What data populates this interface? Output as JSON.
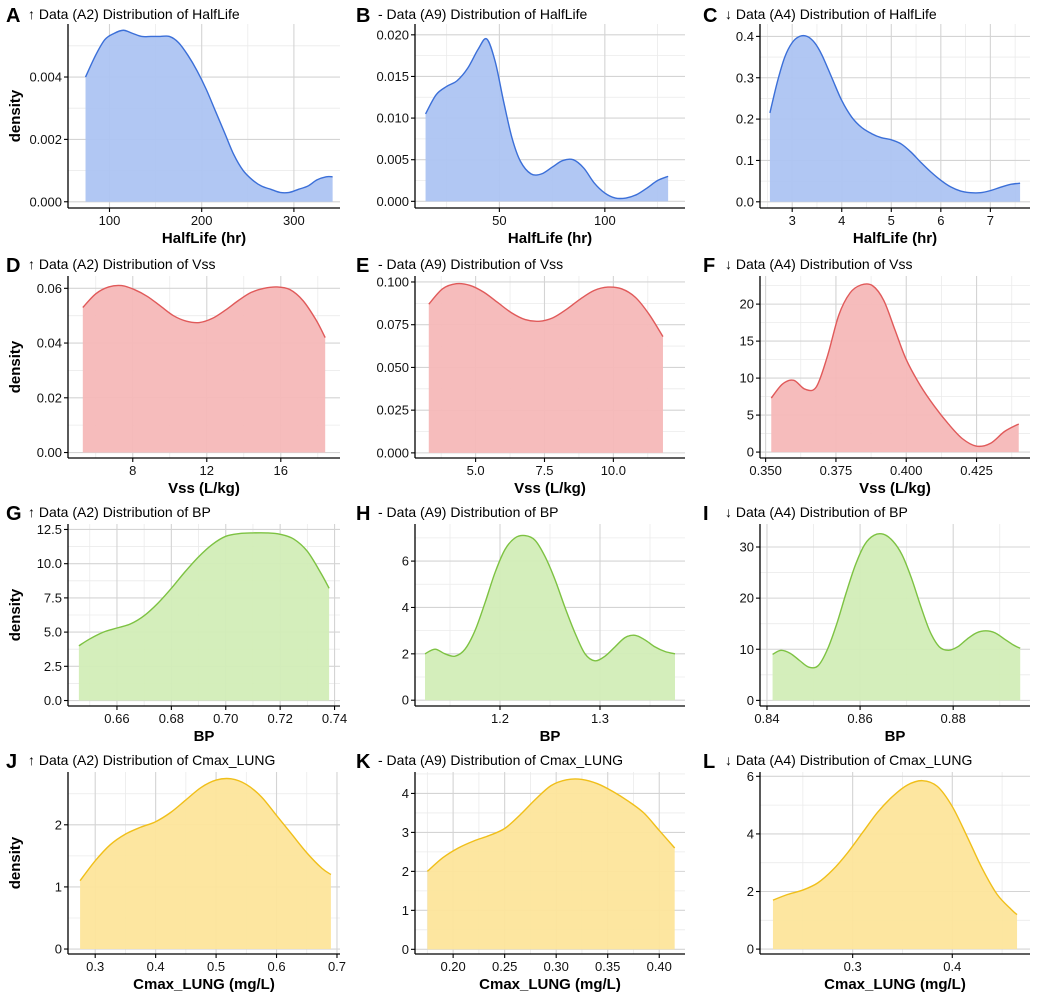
{
  "ylabel": "density",
  "chart_data": [
    {
      "panel": "A",
      "type": "area",
      "title": "↑ Data (A2) Distribution of HalfLife",
      "xlabel": "HalfLife (hr)",
      "ylabel": "density",
      "color": "#3b6fd8",
      "fill": "#adc4f2",
      "xlim": [
        55,
        350
      ],
      "ylim": [
        -0.0002,
        0.0057
      ],
      "xticks": [
        100,
        200,
        300
      ],
      "xtick_labels": [
        "100",
        "200",
        "300"
      ],
      "yticks": [
        0.0,
        0.002,
        0.004
      ],
      "ytick_labels": [
        "0.000",
        "0.002",
        "0.004"
      ],
      "x": [
        74,
        85,
        95,
        105,
        115,
        125,
        135,
        145,
        155,
        165,
        175,
        185,
        195,
        205,
        215,
        225,
        235,
        245,
        255,
        265,
        275,
        285,
        295,
        305,
        315,
        325,
        335,
        342
      ],
      "y": [
        0.004,
        0.0047,
        0.0052,
        0.0054,
        0.0055,
        0.0054,
        0.0053,
        0.0053,
        0.0053,
        0.0053,
        0.0051,
        0.0047,
        0.0042,
        0.0036,
        0.0029,
        0.0022,
        0.0015,
        0.001,
        0.0007,
        0.0005,
        0.0004,
        0.0003,
        0.0003,
        0.0004,
        0.0005,
        0.0007,
        0.0008,
        0.0008
      ]
    },
    {
      "panel": "B",
      "type": "area",
      "title": "- Data (A9) Distribution of HalfLife",
      "xlabel": "HalfLife (hr)",
      "ylabel": "",
      "color": "#3b6fd8",
      "fill": "#adc4f2",
      "xlim": [
        10,
        138
      ],
      "ylim": [
        -0.0008,
        0.0213
      ],
      "xticks": [
        50,
        100
      ],
      "xtick_labels": [
        "50",
        "100"
      ],
      "yticks": [
        0.0,
        0.005,
        0.01,
        0.015,
        0.02
      ],
      "ytick_labels": [
        "0.000",
        "0.005",
        "0.010",
        "0.015",
        "0.020"
      ],
      "x": [
        15,
        20,
        25,
        30,
        35,
        40,
        44,
        48,
        52,
        56,
        60,
        65,
        70,
        75,
        80,
        85,
        90,
        95,
        100,
        105,
        110,
        115,
        120,
        125,
        130
      ],
      "y": [
        0.0105,
        0.0128,
        0.0138,
        0.0145,
        0.016,
        0.0183,
        0.0195,
        0.0168,
        0.012,
        0.0076,
        0.0048,
        0.0033,
        0.0033,
        0.0041,
        0.0049,
        0.005,
        0.004,
        0.0022,
        0.001,
        0.0004,
        0.0004,
        0.0008,
        0.0016,
        0.0025,
        0.003
      ]
    },
    {
      "panel": "C",
      "type": "area",
      "title": "↓ Data (A4) Distribution of HalfLife",
      "xlabel": "HalfLife (hr)",
      "ylabel": "",
      "color": "#3b6fd8",
      "fill": "#adc4f2",
      "xlim": [
        2.35,
        7.8
      ],
      "ylim": [
        -0.015,
        0.43
      ],
      "xticks": [
        3,
        4,
        5,
        6,
        7
      ],
      "xtick_labels": [
        "3",
        "4",
        "5",
        "6",
        "7"
      ],
      "yticks": [
        0.0,
        0.1,
        0.2,
        0.3,
        0.4
      ],
      "ytick_labels": [
        "0.0",
        "0.1",
        "0.2",
        "0.3",
        "0.4"
      ],
      "x": [
        2.55,
        2.7,
        2.85,
        3.0,
        3.15,
        3.3,
        3.45,
        3.6,
        3.8,
        4.0,
        4.2,
        4.4,
        4.6,
        4.8,
        5.0,
        5.2,
        5.4,
        5.6,
        5.8,
        6.0,
        6.2,
        6.4,
        6.6,
        6.8,
        7.0,
        7.2,
        7.4,
        7.6
      ],
      "y": [
        0.215,
        0.29,
        0.35,
        0.385,
        0.4,
        0.4,
        0.385,
        0.355,
        0.3,
        0.245,
        0.205,
        0.18,
        0.165,
        0.155,
        0.15,
        0.14,
        0.12,
        0.095,
        0.072,
        0.052,
        0.036,
        0.026,
        0.022,
        0.022,
        0.027,
        0.035,
        0.042,
        0.045
      ]
    },
    {
      "panel": "D",
      "type": "area",
      "title": "↑ Data (A2) Distribution of Vss",
      "xlabel": "Vss (L/kg)",
      "ylabel": "density",
      "color": "#e05a5a",
      "fill": "#f5b8b8",
      "xlim": [
        4.5,
        19.2
      ],
      "ylim": [
        -0.002,
        0.0645
      ],
      "xticks": [
        8,
        12,
        16
      ],
      "xtick_labels": [
        "8",
        "12",
        "16"
      ],
      "yticks": [
        0.0,
        0.02,
        0.04,
        0.06
      ],
      "ytick_labels": [
        "0.00",
        "0.02",
        "0.04",
        "0.06"
      ],
      "x": [
        5.3,
        6.0,
        6.7,
        7.4,
        8.1,
        8.8,
        9.5,
        10.2,
        10.9,
        11.6,
        12.3,
        13.0,
        13.7,
        14.4,
        15.1,
        15.8,
        16.5,
        17.2,
        17.9,
        18.4
      ],
      "y": [
        0.053,
        0.058,
        0.0605,
        0.061,
        0.0595,
        0.057,
        0.0535,
        0.05,
        0.048,
        0.0475,
        0.049,
        0.052,
        0.0555,
        0.0585,
        0.06,
        0.0605,
        0.0595,
        0.0555,
        0.0485,
        0.042
      ]
    },
    {
      "panel": "E",
      "type": "area",
      "title": "- Data (A9) Distribution of Vss",
      "xlabel": "Vss (L/kg)",
      "ylabel": "",
      "color": "#e05a5a",
      "fill": "#f5b8b8",
      "xlim": [
        2.8,
        12.6
      ],
      "ylim": [
        -0.003,
        0.1035
      ],
      "xticks": [
        5.0,
        7.5,
        10.0
      ],
      "xtick_labels": [
        "5.0",
        "7.5",
        "10.0"
      ],
      "yticks": [
        0.0,
        0.025,
        0.05,
        0.075,
        0.1
      ],
      "ytick_labels": [
        "0.000",
        "0.025",
        "0.050",
        "0.075",
        "0.100"
      ],
      "x": [
        3.3,
        3.8,
        4.3,
        4.8,
        5.3,
        5.8,
        6.3,
        6.8,
        7.3,
        7.8,
        8.3,
        8.8,
        9.3,
        9.8,
        10.3,
        10.8,
        11.3,
        11.8
      ],
      "y": [
        0.087,
        0.096,
        0.099,
        0.098,
        0.094,
        0.088,
        0.082,
        0.078,
        0.077,
        0.079,
        0.084,
        0.09,
        0.095,
        0.097,
        0.096,
        0.091,
        0.081,
        0.068
      ]
    },
    {
      "panel": "F",
      "type": "area",
      "title": "↓ Data (A4) Distribution of Vss",
      "xlabel": "Vss (L/kg)",
      "ylabel": "",
      "color": "#e05a5a",
      "fill": "#f5b8b8",
      "xlim": [
        0.348,
        0.444
      ],
      "ylim": [
        -0.8,
        23.8
      ],
      "xticks": [
        0.35,
        0.375,
        0.4,
        0.425
      ],
      "xtick_labels": [
        "0.350",
        "0.375",
        "0.400",
        "0.425"
      ],
      "yticks": [
        0,
        5,
        10,
        15,
        20
      ],
      "ytick_labels": [
        "0",
        "5",
        "10",
        "15",
        "20"
      ],
      "x": [
        0.352,
        0.356,
        0.36,
        0.364,
        0.368,
        0.372,
        0.376,
        0.38,
        0.384,
        0.388,
        0.392,
        0.396,
        0.4,
        0.405,
        0.41,
        0.415,
        0.42,
        0.425,
        0.43,
        0.435,
        0.44
      ],
      "y": [
        7.3,
        9.2,
        9.7,
        8.5,
        8.8,
        13.0,
        18.5,
        21.5,
        22.6,
        22.5,
        20.5,
        16.5,
        12.5,
        9.0,
        6.2,
        3.8,
        1.8,
        0.8,
        1.2,
        2.8,
        3.8
      ]
    },
    {
      "panel": "G",
      "type": "area",
      "title": "↑ Data (A2) Distribution of BP",
      "xlabel": "BP",
      "ylabel": "density",
      "color": "#7dc242",
      "fill": "#d2edb7",
      "xlim": [
        0.642,
        0.742
      ],
      "ylim": [
        -0.4,
        12.9
      ],
      "xticks": [
        0.66,
        0.68,
        0.7,
        0.72,
        0.74
      ],
      "xtick_labels": [
        "0.66",
        "0.68",
        "0.70",
        "0.72",
        "0.74"
      ],
      "yticks": [
        0,
        2.5,
        5,
        7.5,
        10,
        12.5
      ],
      "ytick_labels": [
        "0.0",
        "2.5",
        "5.0",
        "7.5",
        "10.0",
        "12.5"
      ],
      "x": [
        0.646,
        0.65,
        0.655,
        0.66,
        0.665,
        0.67,
        0.675,
        0.68,
        0.685,
        0.69,
        0.695,
        0.7,
        0.705,
        0.71,
        0.715,
        0.72,
        0.725,
        0.73,
        0.735,
        0.738
      ],
      "y": [
        4.0,
        4.5,
        5.0,
        5.3,
        5.6,
        6.2,
        7.1,
        8.2,
        9.4,
        10.5,
        11.4,
        12.0,
        12.2,
        12.25,
        12.25,
        12.15,
        11.8,
        10.9,
        9.3,
        8.2
      ]
    },
    {
      "panel": "H",
      "type": "area",
      "title": "- Data (A9) Distribution of BP",
      "xlabel": "BP",
      "ylabel": "",
      "color": "#7dc242",
      "fill": "#d2edb7",
      "xlim": [
        1.115,
        1.385
      ],
      "ylim": [
        -0.25,
        7.6
      ],
      "xticks": [
        1.2,
        1.3
      ],
      "xtick_labels": [
        "1.2",
        "1.3"
      ],
      "yticks": [
        0,
        2,
        4,
        6
      ],
      "ytick_labels": [
        "0",
        "2",
        "4",
        "6"
      ],
      "x": [
        1.125,
        1.135,
        1.145,
        1.155,
        1.165,
        1.175,
        1.185,
        1.195,
        1.205,
        1.215,
        1.225,
        1.235,
        1.245,
        1.255,
        1.265,
        1.275,
        1.285,
        1.295,
        1.305,
        1.315,
        1.325,
        1.335,
        1.345,
        1.355,
        1.365,
        1.375
      ],
      "y": [
        2.0,
        2.2,
        2.0,
        1.9,
        2.2,
        3.0,
        4.2,
        5.5,
        6.5,
        7.0,
        7.1,
        6.9,
        6.2,
        5.2,
        4.0,
        2.9,
        2.0,
        1.7,
        1.9,
        2.3,
        2.7,
        2.8,
        2.6,
        2.3,
        2.1,
        2.0
      ]
    },
    {
      "panel": "I",
      "type": "area",
      "title": "↓ Data (A4) Distribution of BP",
      "xlabel": "BP",
      "ylabel": "",
      "color": "#7dc242",
      "fill": "#d2edb7",
      "xlim": [
        0.8385,
        0.8965
      ],
      "ylim": [
        -1.1,
        34.5
      ],
      "xticks": [
        0.84,
        0.86,
        0.88
      ],
      "xtick_labels": [
        "0.84",
        "0.86",
        "0.88"
      ],
      "yticks": [
        0,
        10,
        20,
        30
      ],
      "ytick_labels": [
        "0",
        "10",
        "20",
        "30"
      ],
      "x": [
        0.8412,
        0.843,
        0.845,
        0.847,
        0.849,
        0.851,
        0.853,
        0.855,
        0.857,
        0.859,
        0.861,
        0.863,
        0.865,
        0.867,
        0.869,
        0.871,
        0.873,
        0.875,
        0.877,
        0.879,
        0.881,
        0.883,
        0.885,
        0.887,
        0.889,
        0.891,
        0.893,
        0.8944
      ],
      "y": [
        9.0,
        9.8,
        9.2,
        7.8,
        6.5,
        6.8,
        10.0,
        15.0,
        21.0,
        26.5,
        30.5,
        32.3,
        32.5,
        31.2,
        28.5,
        24.0,
        18.5,
        13.5,
        10.5,
        9.8,
        10.5,
        12.0,
        13.2,
        13.6,
        13.2,
        12.0,
        10.8,
        10.2
      ]
    },
    {
      "panel": "J",
      "type": "area",
      "title": "↑ Data (A2) Distribution of Cmax_LUNG",
      "xlabel": "Cmax_LUNG (mg/L)",
      "ylabel": "density",
      "color": "#f0bf1a",
      "fill": "#fde59b",
      "xlim": [
        0.255,
        0.705
      ],
      "ylim": [
        -0.08,
        2.85
      ],
      "xticks": [
        0.3,
        0.4,
        0.5,
        0.6,
        0.7
      ],
      "xtick_labels": [
        "0.3",
        "0.4",
        "0.5",
        "0.6",
        "0.7"
      ],
      "yticks": [
        0,
        1,
        2
      ],
      "ytick_labels": [
        "0",
        "1",
        "2"
      ],
      "x": [
        0.275,
        0.3,
        0.325,
        0.35,
        0.375,
        0.4,
        0.425,
        0.45,
        0.475,
        0.5,
        0.525,
        0.55,
        0.575,
        0.6,
        0.625,
        0.65,
        0.675,
        0.69
      ],
      "y": [
        1.1,
        1.42,
        1.68,
        1.85,
        1.96,
        2.05,
        2.2,
        2.4,
        2.6,
        2.72,
        2.74,
        2.65,
        2.45,
        2.15,
        1.85,
        1.55,
        1.3,
        1.2
      ]
    },
    {
      "panel": "K",
      "type": "area",
      "title": "- Data (A9) Distribution of Cmax_LUNG",
      "xlabel": "Cmax_LUNG (mg/L)",
      "ylabel": "",
      "color": "#f0bf1a",
      "fill": "#fde59b",
      "xlim": [
        0.163,
        0.425
      ],
      "ylim": [
        -0.12,
        4.55
      ],
      "xticks": [
        0.2,
        0.25,
        0.3,
        0.35,
        0.4
      ],
      "xtick_labels": [
        "0.20",
        "0.25",
        "0.30",
        "0.35",
        "0.40"
      ],
      "yticks": [
        0,
        1,
        2,
        3,
        4
      ],
      "ytick_labels": [
        "0",
        "1",
        "2",
        "3",
        "4"
      ],
      "x": [
        0.175,
        0.19,
        0.205,
        0.22,
        0.235,
        0.25,
        0.265,
        0.28,
        0.295,
        0.31,
        0.325,
        0.34,
        0.355,
        0.37,
        0.385,
        0.4,
        0.415
      ],
      "y": [
        2.0,
        2.35,
        2.6,
        2.78,
        2.92,
        3.1,
        3.45,
        3.85,
        4.2,
        4.35,
        4.36,
        4.25,
        4.05,
        3.8,
        3.5,
        3.05,
        2.6
      ]
    },
    {
      "panel": "L",
      "type": "area",
      "title": "↓ Data (A4) Distribution of Cmax_LUNG",
      "xlabel": "Cmax_LUNG (mg/L)",
      "ylabel": "",
      "color": "#f0bf1a",
      "fill": "#fde59b",
      "xlim": [
        0.207,
        0.478
      ],
      "ylim": [
        -0.17,
        6.15
      ],
      "xticks": [
        0.3,
        0.4
      ],
      "xtick_labels": [
        "0.3",
        "0.4"
      ],
      "yticks": [
        0,
        2,
        4,
        6
      ],
      "ytick_labels": [
        "0",
        "2",
        "4",
        "6"
      ],
      "x": [
        0.22,
        0.235,
        0.25,
        0.265,
        0.28,
        0.295,
        0.31,
        0.325,
        0.34,
        0.355,
        0.37,
        0.385,
        0.4,
        0.415,
        0.43,
        0.445,
        0.46,
        0.465
      ],
      "y": [
        1.7,
        1.9,
        2.05,
        2.3,
        2.75,
        3.35,
        4.05,
        4.75,
        5.3,
        5.7,
        5.85,
        5.65,
        4.95,
        3.9,
        2.8,
        1.9,
        1.35,
        1.2
      ]
    }
  ]
}
